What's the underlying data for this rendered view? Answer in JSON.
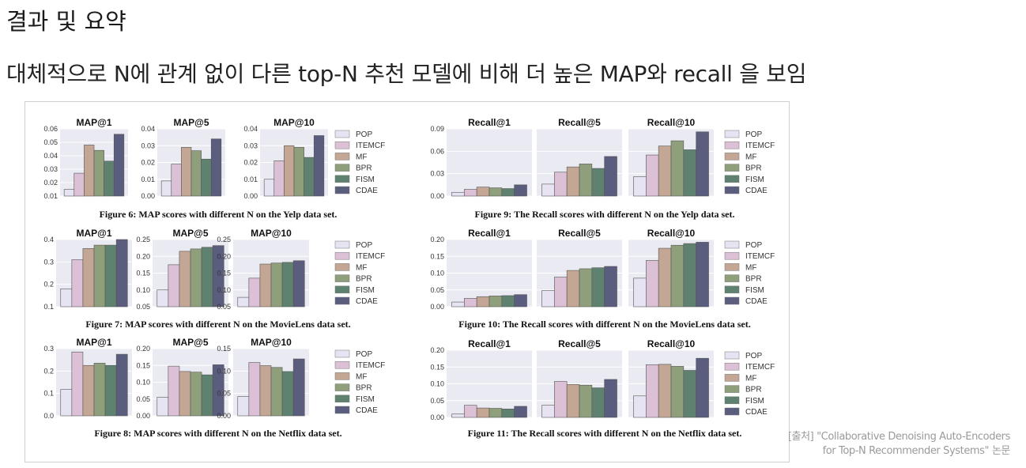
{
  "slide": {
    "title": "결과 및 요약",
    "subtitle": "대체적으로 N에 관계 없이 다른 top-N 추천 모델에 비해 더 높은 MAP와 recall 을 보임",
    "source_line1": "[출처] \"Collaborative Denoising Auto-Encoders",
    "source_line2": "for Top-N Recommender Systems\" 논문"
  },
  "colors": {
    "panel_bg": "#eaeaf2",
    "series": [
      "#e6e4f2",
      "#dcc0d6",
      "#c3a794",
      "#8f9f7c",
      "#5f8270",
      "#5a5d7e"
    ]
  },
  "legend": [
    "POP",
    "ITEMCF",
    "MF",
    "BPR",
    "FISM",
    "CDAE"
  ],
  "chart_data": [
    {
      "type": "bar",
      "caption": "Figure 6: MAP scores with different N on the Yelp data set.",
      "categories": [
        "POP",
        "ITEMCF",
        "MF",
        "BPR",
        "FISM",
        "CDAE"
      ],
      "panels": [
        {
          "title": "MAP@1",
          "ylim": [
            0.01,
            0.06
          ],
          "yticks": [
            "0.01",
            "0.02",
            "0.03",
            "0.04",
            "0.05",
            "0.06"
          ],
          "values": [
            0.015,
            0.027,
            0.048,
            0.044,
            0.036,
            0.056
          ]
        },
        {
          "title": "MAP@5",
          "ylim": [
            0.0,
            0.04
          ],
          "yticks": [
            "0.00",
            "0.01",
            "0.02",
            "0.03",
            "0.04"
          ],
          "values": [
            0.009,
            0.019,
            0.029,
            0.027,
            0.022,
            0.034
          ]
        },
        {
          "title": "MAP@10",
          "ylim": [
            0.0,
            0.04
          ],
          "yticks": [
            "0.00",
            "0.01",
            "0.02",
            "0.03",
            "0.04"
          ],
          "values": [
            0.01,
            0.021,
            0.03,
            0.029,
            0.023,
            0.036
          ]
        }
      ]
    },
    {
      "type": "bar",
      "caption": "Figure 7: MAP scores with different N on the MovieLens data set.",
      "categories": [
        "POP",
        "ITEMCF",
        "MF",
        "BPR",
        "FISM",
        "CDAE"
      ],
      "panels": [
        {
          "title": "MAP@1",
          "ylim": [
            0.1,
            0.4
          ],
          "yticks": [
            "0.1",
            "0.2",
            "0.3",
            "0.4"
          ],
          "values": [
            0.18,
            0.31,
            0.36,
            0.375,
            0.375,
            0.4
          ]
        },
        {
          "title": "MAP@5",
          "ylim": [
            0.05,
            0.25
          ],
          "yticks": [
            "0.05",
            "0.10",
            "0.15",
            "0.20",
            "0.25"
          ],
          "values": [
            0.1,
            0.175,
            0.215,
            0.222,
            0.227,
            0.232
          ]
        },
        {
          "title": "MAP@10",
          "ylim": [
            0.05,
            0.25
          ],
          "yticks": [
            "0.05",
            "0.10",
            "0.15",
            "0.20",
            "0.25"
          ],
          "values": [
            0.078,
            0.135,
            0.177,
            0.18,
            0.182,
            0.187
          ]
        }
      ]
    },
    {
      "type": "bar",
      "caption": "Figure 8: MAP scores with different N on the Netflix data set.",
      "categories": [
        "POP",
        "ITEMCF",
        "MF",
        "BPR",
        "FISM",
        "CDAE"
      ],
      "panels": [
        {
          "title": "MAP@1",
          "ylim": [
            0.0,
            0.3
          ],
          "yticks": [
            "0.0",
            "0.1",
            "0.2",
            "0.3"
          ],
          "values": [
            0.118,
            0.285,
            0.225,
            0.235,
            0.225,
            0.275
          ]
        },
        {
          "title": "MAP@5",
          "ylim": [
            0.0,
            0.2
          ],
          "yticks": [
            "0.00",
            "0.05",
            "0.10",
            "0.15",
            "0.20"
          ],
          "values": [
            0.055,
            0.148,
            0.132,
            0.13,
            0.122,
            0.152
          ]
        },
        {
          "title": "MAP@10",
          "ylim": [
            0.0,
            0.15
          ],
          "yticks": [
            "0.00",
            "0.05",
            "0.10",
            "0.15"
          ],
          "values": [
            0.043,
            0.119,
            0.112,
            0.108,
            0.099,
            0.127
          ]
        }
      ]
    },
    {
      "type": "bar",
      "caption": "Figure 9: The Recall scores with different N on the Yelp data set.",
      "categories": [
        "POP",
        "ITEMCF",
        "MF",
        "BPR",
        "FISM",
        "CDAE"
      ],
      "panels": [
        {
          "title": "Recall@1",
          "ylim": [
            0.0,
            0.09
          ],
          "yticks": [
            "0.00",
            "0.03",
            "0.06",
            "0.09"
          ],
          "values": [
            0.005,
            0.009,
            0.012,
            0.011,
            0.01,
            0.015
          ]
        },
        {
          "title": "Recall@5",
          "ylim": [
            0.0,
            0.09
          ],
          "yticks": [],
          "values": [
            0.016,
            0.032,
            0.039,
            0.043,
            0.037,
            0.053
          ]
        },
        {
          "title": "Recall@10",
          "ylim": [
            0.0,
            0.09
          ],
          "yticks": [],
          "values": [
            0.026,
            0.055,
            0.067,
            0.074,
            0.062,
            0.086
          ]
        }
      ]
    },
    {
      "type": "bar",
      "caption": "Figure 10: The Recall scores with different N on the MovieLens data set.",
      "categories": [
        "POP",
        "ITEMCF",
        "MF",
        "BPR",
        "FISM",
        "CDAE"
      ],
      "panels": [
        {
          "title": "Recall@1",
          "ylim": [
            0.0,
            0.2
          ],
          "yticks": [
            "0.00",
            "0.05",
            "0.10",
            "0.15",
            "0.20"
          ],
          "values": [
            0.014,
            0.025,
            0.03,
            0.032,
            0.033,
            0.036
          ]
        },
        {
          "title": "Recall@5",
          "ylim": [
            0.0,
            0.2
          ],
          "yticks": [],
          "values": [
            0.048,
            0.088,
            0.108,
            0.113,
            0.116,
            0.12
          ]
        },
        {
          "title": "Recall@10",
          "ylim": [
            0.0,
            0.2
          ],
          "yticks": [],
          "values": [
            0.085,
            0.138,
            0.174,
            0.183,
            0.188,
            0.192
          ]
        }
      ]
    },
    {
      "type": "bar",
      "caption": "Figure 11: The Recall scores with different N on the Netflix data set.",
      "categories": [
        "POP",
        "ITEMCF",
        "MF",
        "BPR",
        "FISM",
        "CDAE"
      ],
      "panels": [
        {
          "title": "Recall@1",
          "ylim": [
            0.0,
            0.2
          ],
          "yticks": [
            "0.00",
            "0.05",
            "0.10",
            "0.15",
            "0.20"
          ],
          "values": [
            0.01,
            0.036,
            0.028,
            0.027,
            0.025,
            0.033
          ]
        },
        {
          "title": "Recall@5",
          "ylim": [
            0.0,
            0.2
          ],
          "yticks": [],
          "values": [
            0.036,
            0.107,
            0.098,
            0.096,
            0.088,
            0.113
          ]
        },
        {
          "title": "Recall@10",
          "ylim": [
            0.0,
            0.2
          ],
          "yticks": [],
          "values": [
            0.064,
            0.157,
            0.158,
            0.152,
            0.14,
            0.176
          ]
        }
      ]
    }
  ]
}
